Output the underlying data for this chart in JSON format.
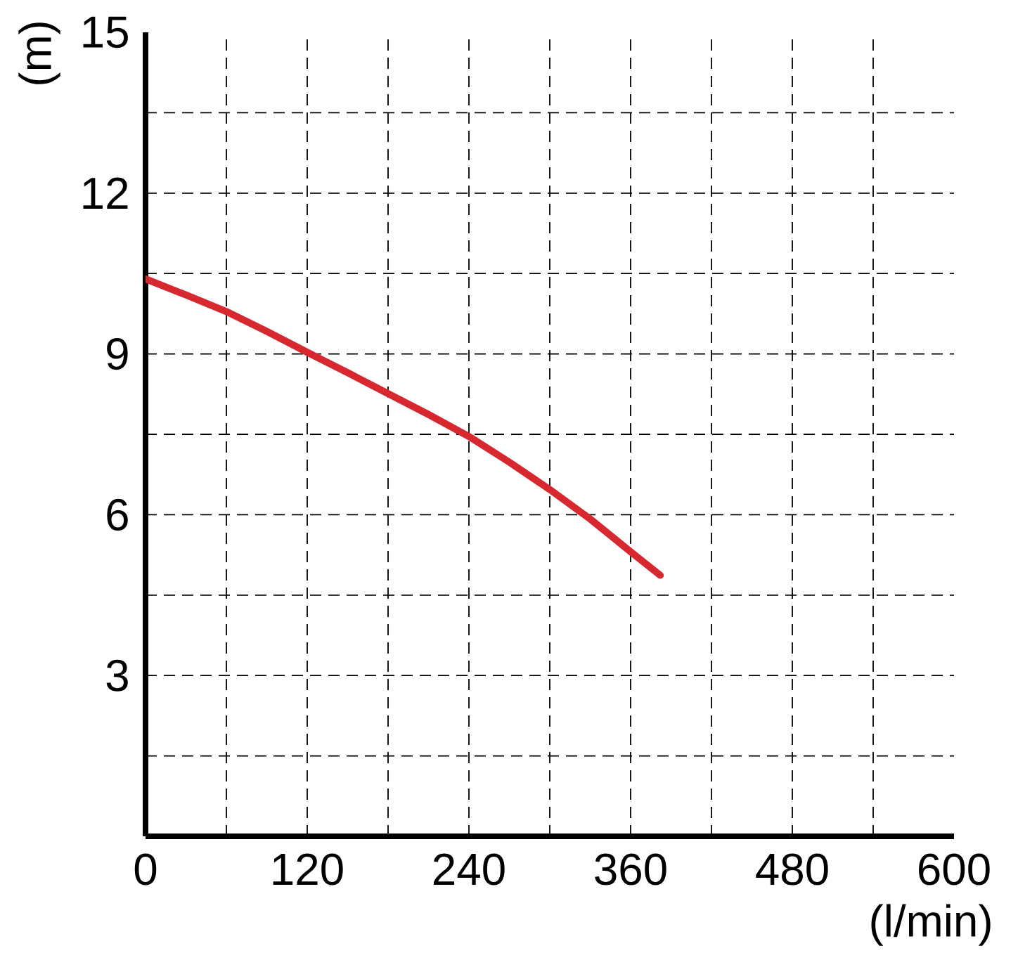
{
  "chart_data": {
    "type": "line",
    "xlabel": "(l/min)",
    "ylabel": "(m)",
    "x": [
      0,
      30,
      60,
      90,
      120,
      150,
      180,
      210,
      240,
      270,
      300,
      330,
      360,
      382
    ],
    "values": [
      10.4,
      10.1,
      9.79,
      9.42,
      9.03,
      8.65,
      8.26,
      7.87,
      7.46,
      6.98,
      6.47,
      5.92,
      5.31,
      4.87
    ],
    "color": "#d7282f",
    "line_style": "solid",
    "xlim": [
      0,
      600
    ],
    "ylim": [
      0,
      15
    ],
    "xticks": [
      0,
      {
        "value": 60,
        "label": null
      },
      120,
      {
        "value": 180,
        "label": null
      },
      240,
      {
        "value": 300,
        "label": null
      },
      360,
      {
        "value": 420,
        "label": null
      },
      480,
      {
        "value": 540,
        "label": null
      },
      600
    ],
    "yticks": [
      {
        "value": 1.5,
        "label": null
      },
      3,
      {
        "value": 4.5,
        "label": null
      },
      6,
      {
        "value": 7.5,
        "label": null
      },
      9,
      {
        "value": 10.5,
        "label": null
      },
      12,
      {
        "value": 13.5,
        "label": null
      },
      15
    ],
    "grid": true
  }
}
